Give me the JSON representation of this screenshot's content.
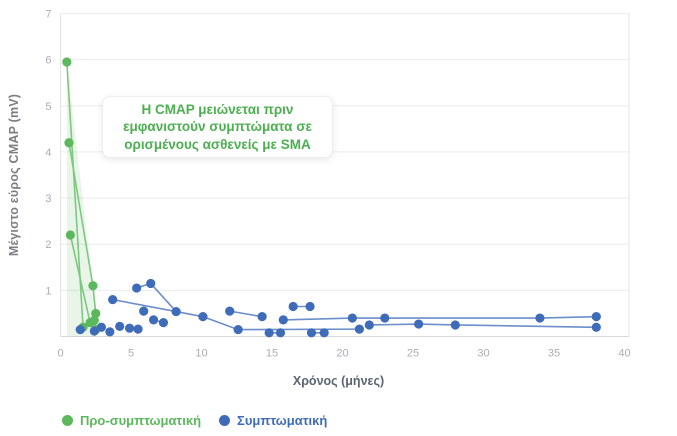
{
  "chart_data": {
    "type": "scatter",
    "title": "",
    "xlabel": "Χρόνος (μήνες)",
    "ylabel": "Μέγιστο εύρος CMAP (mV)",
    "xlim": [
      0,
      40
    ],
    "ylim": [
      0,
      7
    ],
    "x_ticks": [
      0,
      5,
      10,
      15,
      20,
      25,
      30,
      35,
      40
    ],
    "y_ticks": [
      0,
      1,
      2,
      3,
      4,
      5,
      6,
      7
    ],
    "grid": "horizontal",
    "legend_position": "bottom-left",
    "annotation": {
      "lines": [
        "Η CMAP μειώνεται πριν",
        "εμφανιστούν συμπτώματα σε",
        "ορισμένους ασθενείς με SMA"
      ],
      "color": "#4caf50"
    },
    "series": [
      {
        "id": "pre-symptomatic",
        "name": "Προ-συμπτωματική",
        "color": "#5cb85c",
        "line_color": "#7cc97f",
        "points": [
          [
            0.45,
            5.95
          ],
          [
            0.6,
            4.2
          ],
          [
            0.7,
            2.2
          ],
          [
            1.6,
            0.2
          ],
          [
            2.1,
            0.3
          ],
          [
            2.3,
            1.1
          ],
          [
            2.4,
            0.35
          ],
          [
            2.5,
            0.5
          ],
          [
            2.5,
            0.15
          ]
        ],
        "segments": [
          [
            [
              0.45,
              5.95
            ],
            [
              1.6,
              0.2
            ]
          ],
          [
            [
              0.6,
              4.2
            ],
            [
              2.3,
              1.1
            ],
            [
              2.5,
              0.5
            ],
            [
              2.5,
              0.15
            ]
          ],
          [
            [
              0.7,
              2.2
            ],
            [
              2.1,
              0.3
            ]
          ]
        ],
        "area": [
          [
            0.45,
            5.95
          ],
          [
            2.3,
            1.1
          ],
          [
            2.5,
            0.5
          ],
          [
            2.5,
            0
          ],
          [
            0.45,
            0
          ]
        ]
      },
      {
        "id": "symptomatic",
        "name": "Συμπτωματική",
        "color": "#3f6cb8",
        "line_color": "#6c8ecb",
        "points": [
          [
            1.4,
            0.15
          ],
          [
            2.4,
            0.12
          ],
          [
            2.9,
            0.2
          ],
          [
            3.5,
            0.1
          ],
          [
            3.7,
            0.8
          ],
          [
            4.2,
            0.22
          ],
          [
            4.9,
            0.18
          ],
          [
            5.4,
            1.05
          ],
          [
            5.5,
            0.16
          ],
          [
            5.9,
            0.55
          ],
          [
            6.4,
            1.15
          ],
          [
            6.6,
            0.36
          ],
          [
            7.3,
            0.3
          ],
          [
            8.2,
            0.54
          ],
          [
            10.1,
            0.43
          ],
          [
            12.0,
            0.55
          ],
          [
            12.6,
            0.15
          ],
          [
            14.3,
            0.43
          ],
          [
            14.8,
            0.08
          ],
          [
            15.6,
            0.08
          ],
          [
            15.8,
            0.36
          ],
          [
            16.5,
            0.65
          ],
          [
            17.7,
            0.65
          ],
          [
            17.8,
            0.08
          ],
          [
            18.7,
            0.08
          ],
          [
            20.7,
            0.4
          ],
          [
            21.2,
            0.16
          ],
          [
            21.9,
            0.25
          ],
          [
            23.0,
            0.4
          ],
          [
            25.4,
            0.27
          ],
          [
            28.0,
            0.25
          ],
          [
            34.0,
            0.4
          ],
          [
            38.0,
            0.43
          ],
          [
            38.0,
            0.2
          ]
        ],
        "segments": [
          [
            [
              3.7,
              0.8
            ],
            [
              8.2,
              0.54
            ]
          ],
          [
            [
              5.4,
              1.05
            ],
            [
              6.4,
              1.15
            ],
            [
              8.2,
              0.54
            ],
            [
              10.1,
              0.43
            ],
            [
              12.6,
              0.15
            ],
            [
              21.2,
              0.16
            ]
          ],
          [
            [
              6.6,
              0.36
            ],
            [
              7.3,
              0.3
            ]
          ],
          [
            [
              12.0,
              0.55
            ],
            [
              14.3,
              0.43
            ]
          ],
          [
            [
              14.8,
              0.08
            ],
            [
              15.6,
              0.08
            ]
          ],
          [
            [
              17.8,
              0.08
            ],
            [
              18.7,
              0.08
            ]
          ],
          [
            [
              16.5,
              0.65
            ],
            [
              17.7,
              0.65
            ]
          ],
          [
            [
              15.8,
              0.36
            ],
            [
              20.7,
              0.4
            ],
            [
              34.0,
              0.4
            ],
            [
              38.0,
              0.43
            ]
          ],
          [
            [
              21.9,
              0.25
            ],
            [
              25.4,
              0.27
            ],
            [
              28.0,
              0.25
            ],
            [
              38.0,
              0.2
            ]
          ]
        ]
      }
    ]
  }
}
